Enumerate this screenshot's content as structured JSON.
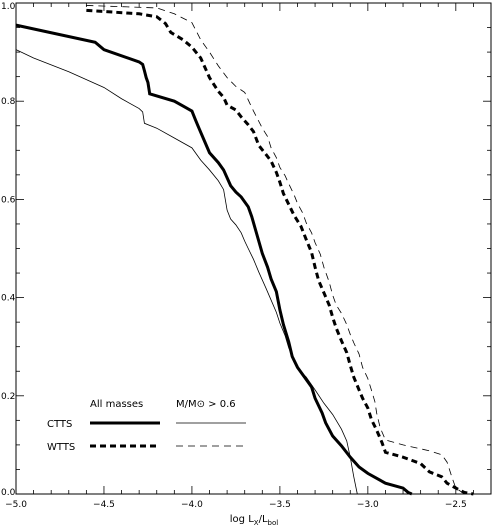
{
  "chart_data": {
    "type": "line",
    "title": "",
    "xlabel": "log L_x/L_bol",
    "xlabel_parts": {
      "main": "log L",
      "sub1": "X",
      "slash": "/L",
      "sub2": "bol"
    },
    "ylabel": "",
    "xlim": [
      -5.0,
      -2.3
    ],
    "ylim": [
      0.0,
      1.0
    ],
    "x_ticks": [
      {
        "value": -5.0,
        "label": "−5.0"
      },
      {
        "value": -4.5,
        "label": "−4.5"
      },
      {
        "value": -4.0,
        "label": "−4.0"
      },
      {
        "value": -3.5,
        "label": "−3.5"
      },
      {
        "value": -3.0,
        "label": "−3.0"
      },
      {
        "value": -2.5,
        "label": "−2.5"
      }
    ],
    "y_ticks": [
      {
        "value": 0.0,
        "label": "0.0"
      },
      {
        "value": 0.2,
        "label": "0.2"
      },
      {
        "value": 0.4,
        "label": "0.4"
      },
      {
        "value": 0.6,
        "label": "0.6"
      },
      {
        "value": 0.8,
        "label": "0.8"
      },
      {
        "value": 1.0,
        "label": "1.0"
      }
    ],
    "grid": false,
    "legend": {
      "placement": "bottom-left",
      "col1_header": "All masses",
      "col2_header": "M/M⊙ > 0.6",
      "row1_label": "CTTS",
      "row2_label": "WTTS"
    },
    "series": [
      {
        "name": "CTTS, All masses",
        "style": "thick-solid",
        "points": [
          [
            -5.0,
            0.955
          ],
          [
            -4.55,
            0.92
          ],
          [
            -4.5,
            0.905
          ],
          [
            -4.3,
            0.88
          ],
          [
            -4.28,
            0.875
          ],
          [
            -4.27,
            0.862
          ],
          [
            -4.26,
            0.848
          ],
          [
            -4.25,
            0.838
          ],
          [
            -4.24,
            0.815
          ],
          [
            -4.1,
            0.8
          ],
          [
            -4.05,
            0.79
          ],
          [
            -4.0,
            0.78
          ],
          [
            -3.98,
            0.762
          ],
          [
            -3.96,
            0.745
          ],
          [
            -3.93,
            0.72
          ],
          [
            -3.9,
            0.695
          ],
          [
            -3.85,
            0.675
          ],
          [
            -3.82,
            0.66
          ],
          [
            -3.78,
            0.628
          ],
          [
            -3.75,
            0.615
          ],
          [
            -3.72,
            0.605
          ],
          [
            -3.68,
            0.585
          ],
          [
            -3.66,
            0.565
          ],
          [
            -3.64,
            0.54
          ],
          [
            -3.62,
            0.515
          ],
          [
            -3.6,
            0.49
          ],
          [
            -3.57,
            0.462
          ],
          [
            -3.55,
            0.438
          ],
          [
            -3.52,
            0.412
          ],
          [
            -3.5,
            0.375
          ],
          [
            -3.48,
            0.345
          ],
          [
            -3.45,
            0.31
          ],
          [
            -3.43,
            0.28
          ],
          [
            -3.4,
            0.258
          ],
          [
            -3.36,
            0.238
          ],
          [
            -3.32,
            0.218
          ],
          [
            -3.3,
            0.195
          ],
          [
            -3.26,
            0.165
          ],
          [
            -3.24,
            0.145
          ],
          [
            -3.2,
            0.118
          ],
          [
            -3.15,
            0.098
          ],
          [
            -3.1,
            0.075
          ],
          [
            -3.05,
            0.055
          ],
          [
            -3.0,
            0.042
          ],
          [
            -2.9,
            0.022
          ],
          [
            -2.8,
            0.012
          ],
          [
            -2.77,
            0.003
          ],
          [
            -2.75,
            0.0
          ]
        ]
      },
      {
        "name": "WTTS, All masses",
        "style": "thick-dashed",
        "points": [
          [
            -4.6,
            0.985
          ],
          [
            -4.3,
            0.978
          ],
          [
            -4.2,
            0.972
          ],
          [
            -4.15,
            0.958
          ],
          [
            -4.12,
            0.94
          ],
          [
            -4.05,
            0.925
          ],
          [
            -4.0,
            0.91
          ],
          [
            -3.95,
            0.888
          ],
          [
            -3.93,
            0.872
          ],
          [
            -3.9,
            0.848
          ],
          [
            -3.85,
            0.82
          ],
          [
            -3.82,
            0.808
          ],
          [
            -3.8,
            0.792
          ],
          [
            -3.75,
            0.782
          ],
          [
            -3.72,
            0.768
          ],
          [
            -3.68,
            0.752
          ],
          [
            -3.65,
            0.738
          ],
          [
            -3.62,
            0.71
          ],
          [
            -3.58,
            0.692
          ],
          [
            -3.55,
            0.678
          ],
          [
            -3.52,
            0.655
          ],
          [
            -3.5,
            0.635
          ],
          [
            -3.48,
            0.612
          ],
          [
            -3.45,
            0.59
          ],
          [
            -3.42,
            0.568
          ],
          [
            -3.38,
            0.545
          ],
          [
            -3.35,
            0.518
          ],
          [
            -3.32,
            0.492
          ],
          [
            -3.3,
            0.462
          ],
          [
            -3.28,
            0.435
          ],
          [
            -3.25,
            0.41
          ],
          [
            -3.22,
            0.385
          ],
          [
            -3.2,
            0.36
          ],
          [
            -3.18,
            0.338
          ],
          [
            -3.15,
            0.312
          ],
          [
            -3.12,
            0.288
          ],
          [
            -3.1,
            0.262
          ],
          [
            -3.08,
            0.238
          ],
          [
            -3.05,
            0.212
          ],
          [
            -3.03,
            0.195
          ],
          [
            -3.0,
            0.175
          ],
          [
            -2.98,
            0.152
          ],
          [
            -2.95,
            0.13
          ],
          [
            -2.92,
            0.105
          ],
          [
            -2.9,
            0.085
          ],
          [
            -2.8,
            0.075
          ],
          [
            -2.7,
            0.062
          ],
          [
            -2.65,
            0.045
          ],
          [
            -2.58,
            0.035
          ],
          [
            -2.55,
            0.022
          ],
          [
            -2.5,
            0.012
          ],
          [
            -2.45,
            0.003
          ],
          [
            -2.4,
            0.0
          ]
        ]
      },
      {
        "name": "CTTS, M/M⊙ > 0.6",
        "style": "thin-solid",
        "points": [
          [
            -5.0,
            0.905
          ],
          [
            -4.9,
            0.888
          ],
          [
            -4.7,
            0.86
          ],
          [
            -4.5,
            0.828
          ],
          [
            -4.4,
            0.805
          ],
          [
            -4.3,
            0.785
          ],
          [
            -4.28,
            0.778
          ],
          [
            -4.27,
            0.755
          ],
          [
            -4.2,
            0.745
          ],
          [
            -4.1,
            0.725
          ],
          [
            -4.0,
            0.705
          ],
          [
            -3.95,
            0.68
          ],
          [
            -3.9,
            0.66
          ],
          [
            -3.85,
            0.638
          ],
          [
            -3.82,
            0.62
          ],
          [
            -3.8,
            0.578
          ],
          [
            -3.78,
            0.56
          ],
          [
            -3.75,
            0.548
          ],
          [
            -3.72,
            0.532
          ],
          [
            -3.7,
            0.515
          ],
          [
            -3.68,
            0.5
          ],
          [
            -3.65,
            0.478
          ],
          [
            -3.62,
            0.452
          ],
          [
            -3.58,
            0.42
          ],
          [
            -3.55,
            0.395
          ],
          [
            -3.52,
            0.37
          ],
          [
            -3.5,
            0.348
          ],
          [
            -3.47,
            0.322
          ],
          [
            -3.45,
            0.298
          ],
          [
            -3.42,
            0.272
          ],
          [
            -3.4,
            0.255
          ],
          [
            -3.35,
            0.238
          ],
          [
            -3.3,
            0.212
          ],
          [
            -3.25,
            0.185
          ],
          [
            -3.2,
            0.162
          ],
          [
            -3.15,
            0.132
          ],
          [
            -3.12,
            0.108
          ],
          [
            -3.1,
            0.075
          ],
          [
            -3.08,
            0.035
          ],
          [
            -3.06,
            0.0
          ]
        ]
      },
      {
        "name": "WTTS, M/M⊙ > 0.6",
        "style": "thin-dashed",
        "points": [
          [
            -4.6,
            0.995
          ],
          [
            -4.2,
            0.99
          ],
          [
            -4.1,
            0.978
          ],
          [
            -4.0,
            0.96
          ],
          [
            -3.95,
            0.925
          ],
          [
            -3.9,
            0.9
          ],
          [
            -3.85,
            0.872
          ],
          [
            -3.8,
            0.848
          ],
          [
            -3.75,
            0.83
          ],
          [
            -3.7,
            0.818
          ],
          [
            -3.67,
            0.795
          ],
          [
            -3.65,
            0.78
          ],
          [
            -3.6,
            0.745
          ],
          [
            -3.57,
            0.728
          ],
          [
            -3.55,
            0.705
          ],
          [
            -3.52,
            0.685
          ],
          [
            -3.5,
            0.665
          ],
          [
            -3.47,
            0.648
          ],
          [
            -3.45,
            0.632
          ],
          [
            -3.42,
            0.61
          ],
          [
            -3.4,
            0.592
          ],
          [
            -3.37,
            0.572
          ],
          [
            -3.35,
            0.552
          ],
          [
            -3.32,
            0.532
          ],
          [
            -3.3,
            0.512
          ],
          [
            -3.27,
            0.488
          ],
          [
            -3.25,
            0.462
          ],
          [
            -3.22,
            0.432
          ],
          [
            -3.2,
            0.405
          ],
          [
            -3.18,
            0.385
          ],
          [
            -3.15,
            0.368
          ],
          [
            -3.12,
            0.345
          ],
          [
            -3.1,
            0.325
          ],
          [
            -3.08,
            0.308
          ],
          [
            -3.05,
            0.285
          ],
          [
            -3.03,
            0.258
          ],
          [
            -3.0,
            0.235
          ],
          [
            -2.98,
            0.212
          ],
          [
            -2.96,
            0.188
          ],
          [
            -2.95,
            0.165
          ],
          [
            -2.93,
            0.135
          ],
          [
            -2.9,
            0.11
          ],
          [
            -2.8,
            0.1
          ],
          [
            -2.7,
            0.092
          ],
          [
            -2.65,
            0.088
          ],
          [
            -2.58,
            0.08
          ],
          [
            -2.55,
            0.065
          ],
          [
            -2.52,
            0.032
          ],
          [
            -2.5,
            0.012
          ],
          [
            -2.45,
            0.0
          ]
        ]
      }
    ]
  }
}
